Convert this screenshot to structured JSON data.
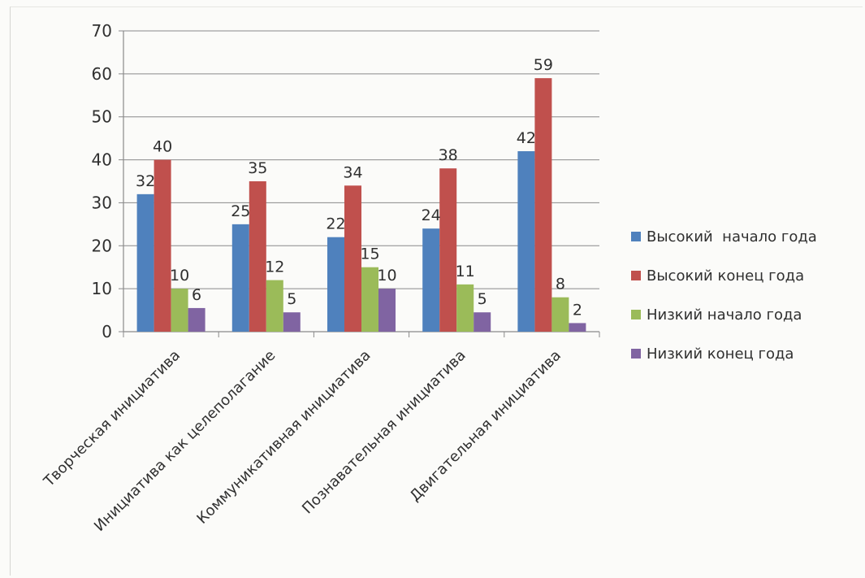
{
  "chart_data": {
    "type": "bar",
    "title": "",
    "xlabel": "",
    "ylabel": "",
    "ylim": [
      0,
      70
    ],
    "yticks": [
      0,
      10,
      20,
      30,
      40,
      50,
      60,
      70
    ],
    "grid": true,
    "legend_position": "right",
    "categories": [
      "Творческая инициатива",
      "Инициатива как целеполагание",
      "Коммуникативная инициатива",
      "Познавательная инициатива",
      "Двигательная инициатива"
    ],
    "series": [
      {
        "name": "Высокий  начало года",
        "color": "#4f81bd",
        "values": [
          32,
          25,
          22,
          24,
          42
        ],
        "labels": [
          "32",
          "25",
          "22",
          "24",
          "42"
        ]
      },
      {
        "name": "Высокий конец года",
        "color": "#c0504d",
        "values": [
          40,
          35,
          34,
          38,
          59
        ],
        "labels": [
          "40",
          "35",
          "34",
          "38",
          "59"
        ]
      },
      {
        "name": "Низкий начало года",
        "color": "#9bbb59",
        "values": [
          10,
          12,
          15,
          11,
          8
        ],
        "labels": [
          "10",
          "12",
          "15",
          "11",
          "8"
        ]
      },
      {
        "name": "Низкий конец года",
        "color": "#8064a2",
        "values": [
          5.5,
          4.5,
          10,
          4.5,
          2
        ],
        "labels": [
          "6",
          "5",
          "10",
          "5",
          "2"
        ]
      }
    ]
  }
}
